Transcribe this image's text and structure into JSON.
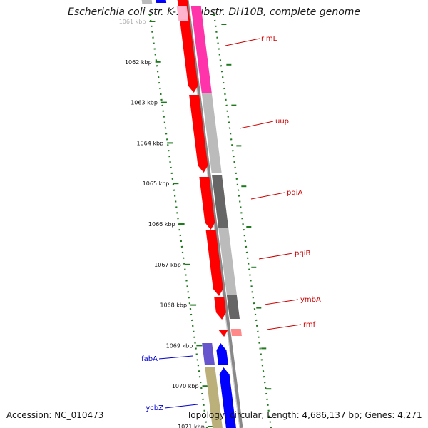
{
  "title": "Escherichia coli str. K-12 substr. DH10B, complete genome",
  "footer": {
    "accession": "Accession: NC_010473",
    "topology": "Topology: circular; Length: 4,686,137 bp; Genes: 4,271"
  },
  "colors": {
    "cds_forward": "#ff0000",
    "cds_reverse": "#0000ff",
    "label_forward": "#cc0000",
    "label_reverse": "#0000cc",
    "ruler_dots": "#1f7a1f",
    "backbone": "#888888"
  },
  "ruler": {
    "unit": "kbp",
    "ticks": [
      "1061 kbp",
      "1062 kbp",
      "1063 kbp",
      "1064 kbp",
      "1065 kbp",
      "1066 kbp",
      "1067 kbp",
      "1068 kbp",
      "1069 kbp",
      "1070 kbp",
      "1071 kbp"
    ]
  },
  "genes": [
    {
      "name": "rlmL",
      "strand": "forward"
    },
    {
      "name": "uup",
      "strand": "forward"
    },
    {
      "name": "pqiA",
      "strand": "forward"
    },
    {
      "name": "pqiB",
      "strand": "forward"
    },
    {
      "name": "ymbA",
      "strand": "forward"
    },
    {
      "name": "rmf",
      "strand": "forward"
    },
    {
      "name": "fabA",
      "strand": "reverse"
    },
    {
      "name": "ycbZ",
      "strand": "reverse"
    }
  ]
}
